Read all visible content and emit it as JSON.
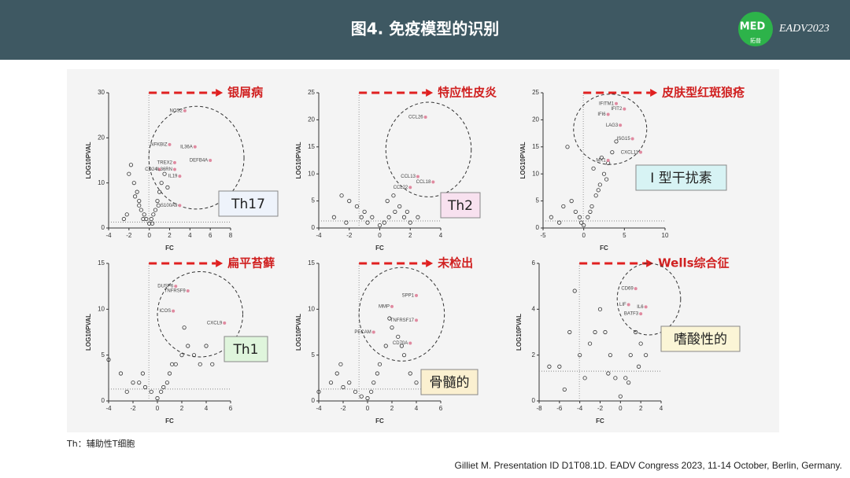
{
  "header": {
    "title": "图4. 免疫模型的识别",
    "logo_text": "MED",
    "logo_subtext": "拓普",
    "event": "EADV2023"
  },
  "footnote": "Th：辅助性T细胞",
  "citation": "Gilliet M. Presentation ID D1T08.1D. EADV Congress 2023, 11-14 October, Berlin, Germany.",
  "chart_data": [
    {
      "type": "scatter",
      "title": "银屑病",
      "xlabel": "FC",
      "ylabel": "LOG10PVAL",
      "xlim": [
        -4,
        8
      ],
      "ylim": [
        0,
        30
      ],
      "xticks": [
        -4,
        -2,
        0,
        2,
        4,
        6,
        8
      ],
      "yticks": [
        0,
        10,
        20,
        30
      ],
      "hline": 1.3,
      "color": "#333333",
      "box_label": "Th17",
      "box_color": "#eef3fb",
      "x": [
        -2.5,
        -2,
        -1.5,
        -1.2,
        -1,
        -0.8,
        -0.5,
        -0.3,
        0,
        0.2,
        0.4,
        0.6,
        0.8,
        1,
        1.2,
        1.5,
        -1.8,
        -1,
        -0.6,
        0.3,
        -2.2,
        -1.4,
        0.9,
        1.8
      ],
      "values": [
        2,
        12,
        10,
        8,
        6,
        4,
        3,
        2,
        1,
        2,
        3,
        4,
        6,
        8,
        10,
        12,
        14,
        5,
        2,
        1,
        3,
        7,
        5,
        9
      ],
      "annotations": [
        {
          "label": "NOS2",
          "x": 3.5,
          "y": 26
        },
        {
          "label": "NFKBIZ",
          "x": 2,
          "y": 18.5
        },
        {
          "label": "IL36A",
          "x": 4.5,
          "y": 18
        },
        {
          "label": "DEFB4A",
          "x": 6,
          "y": 15
        },
        {
          "label": "TREX2",
          "x": 2.5,
          "y": 14.5
        },
        {
          "label": "CD24",
          "x": 1,
          "y": 13
        },
        {
          "label": "IL36RN",
          "x": 2.5,
          "y": 13
        },
        {
          "label": "IL19",
          "x": 3,
          "y": 11.5
        },
        {
          "label": "S100A9",
          "x": 3,
          "y": 5
        }
      ]
    },
    {
      "type": "scatter",
      "title": "特应性皮炎",
      "xlabel": "FC",
      "ylabel": "LOG10PVAL",
      "xlim": [
        -4,
        4
      ],
      "ylim": [
        0,
        25
      ],
      "xticks": [
        -4,
        -2,
        0,
        2,
        4
      ],
      "yticks": [
        0,
        5,
        10,
        15,
        20,
        25
      ],
      "hline": 1.3,
      "color": "#333333",
      "box_label": "Th2",
      "box_color": "#f8e1ef",
      "x": [
        -3,
        -2.5,
        -2,
        -1.5,
        -1,
        -0.5,
        0,
        0.3,
        0.6,
        1,
        1.3,
        1.6,
        2,
        -1.2,
        -0.8,
        0.5,
        1.8,
        -2.2,
        2.5,
        0.9
      ],
      "values": [
        2,
        6,
        5,
        4,
        3,
        2,
        0.5,
        1,
        2,
        3,
        4,
        2,
        1,
        2,
        1,
        5,
        3,
        1,
        2,
        6
      ],
      "annotations": [
        {
          "label": "CCL26",
          "x": 3,
          "y": 20.5
        },
        {
          "label": "CCL13",
          "x": 2.5,
          "y": 9.5
        },
        {
          "label": "CCL18",
          "x": 3.5,
          "y": 8.5
        },
        {
          "label": "CCL22",
          "x": 2,
          "y": 7.5
        }
      ]
    },
    {
      "type": "scatter",
      "title": "皮肤型红斑狼疮",
      "xlabel": "FC",
      "ylabel": "LOG10PVAL",
      "xlim": [
        -5,
        10
      ],
      "ylim": [
        0,
        25
      ],
      "xticks": [
        -5,
        0,
        5,
        10
      ],
      "yticks": [
        0,
        5,
        10,
        15,
        20,
        25
      ],
      "hline": 1.3,
      "color": "#333333",
      "box_label": "Ⅰ 型干扰素",
      "box_color": "#d7f3f4",
      "x": [
        -4,
        -3,
        -2,
        -1,
        -0.5,
        0,
        0.5,
        1,
        1.5,
        2,
        2.5,
        3,
        3.5,
        4,
        -1.5,
        0.8,
        1.8,
        2.8,
        -2.5,
        1.2,
        2.2,
        -0.3
      ],
      "values": [
        2,
        1,
        15,
        3,
        2,
        0.5,
        2,
        4,
        6,
        8,
        10,
        12,
        14,
        16,
        5,
        3,
        7,
        9,
        4,
        11,
        13,
        1
      ],
      "annotations": [
        {
          "label": "IFITM1",
          "x": 4,
          "y": 23
        },
        {
          "label": "IFIT2",
          "x": 5,
          "y": 22
        },
        {
          "label": "IFI6",
          "x": 3,
          "y": 21
        },
        {
          "label": "LAG3",
          "x": 4.5,
          "y": 19
        },
        {
          "label": "ISG15",
          "x": 6,
          "y": 16.5
        },
        {
          "label": "CXCL11",
          "x": 7,
          "y": 14
        },
        {
          "label": "MX1",
          "x": 3,
          "y": 12.5
        }
      ]
    },
    {
      "type": "scatter",
      "title": "扁平苔藓",
      "xlabel": "FC",
      "ylabel": "LOG10PVAL",
      "xlim": [
        -4,
        6
      ],
      "ylim": [
        0,
        15
      ],
      "xticks": [
        -4,
        -2,
        0,
        2,
        4,
        6
      ],
      "yticks": [
        0,
        5,
        10,
        15
      ],
      "hline": 1.3,
      "color": "#333333",
      "box_label": "Th1",
      "box_color": "#dff5dc",
      "x": [
        -4,
        -3,
        -2,
        -1.5,
        -1,
        -0.5,
        0,
        0.5,
        1,
        1.5,
        2,
        2.5,
        3,
        3.5,
        4,
        -2.5,
        0.3,
        1.2,
        2.2,
        -1.2,
        4.5,
        0.8
      ],
      "values": [
        4.5,
        3,
        2,
        2,
        1.5,
        1,
        0.3,
        1.5,
        3,
        4,
        5,
        6,
        5,
        4,
        6,
        1,
        1,
        4,
        8,
        3,
        4,
        2
      ],
      "annotations": [
        {
          "label": "DUSP6",
          "x": 1.5,
          "y": 12.5
        },
        {
          "label": "TNFRSF9",
          "x": 2.5,
          "y": 12
        },
        {
          "label": "ICOS",
          "x": 1.3,
          "y": 9.8
        },
        {
          "label": "CXCL9",
          "x": 5.5,
          "y": 8.5
        }
      ]
    },
    {
      "type": "scatter",
      "title": "未检出",
      "xlabel": "FC",
      "ylabel": "LOG10PVAL",
      "xlim": [
        -4,
        6
      ],
      "ylim": [
        0,
        15
      ],
      "xticks": [
        -4,
        -2,
        0,
        2,
        4,
        6
      ],
      "yticks": [
        0,
        5,
        10,
        15
      ],
      "hline": 1.3,
      "color": "#333333",
      "box_label": "骨髓的",
      "box_color": "#fbf0d0",
      "x": [
        -4,
        -3,
        -2.5,
        -2,
        -1,
        -0.5,
        0,
        0.5,
        1,
        1.5,
        2,
        2.5,
        3,
        3.5,
        4,
        -1.5,
        0.8,
        1.8,
        2.8,
        5,
        -2.2,
        0.3
      ],
      "values": [
        1,
        2,
        3,
        1.5,
        1,
        0.5,
        0.3,
        2,
        4,
        6,
        8,
        7,
        5,
        3,
        2,
        2,
        3,
        9,
        6,
        1,
        4,
        1
      ],
      "annotations": [
        {
          "label": "SPP1",
          "x": 4,
          "y": 11.5
        },
        {
          "label": "MMP",
          "x": 2,
          "y": 10.3
        },
        {
          "label": "TNFRSF17",
          "x": 4,
          "y": 8.8
        },
        {
          "label": "CD70A",
          "x": 3.5,
          "y": 6.3
        },
        {
          "label": "PECAM",
          "x": 0.5,
          "y": 7.5
        }
      ]
    },
    {
      "type": "scatter",
      "title": "Wells综合征",
      "xlabel": "FC",
      "ylabel": "LOG10PVAL",
      "xlim": [
        -8,
        4
      ],
      "ylim": [
        0,
        6
      ],
      "xticks": [
        -8,
        -6,
        -4,
        -2,
        0,
        2,
        4
      ],
      "yticks": [
        0,
        2,
        4,
        6
      ],
      "hline": 1.3,
      "color": "#333333",
      "box_label": "嗜酸性的",
      "box_color": "#fbf5d6",
      "x": [
        -7,
        -6,
        -5,
        -4,
        -3,
        -2,
        -1.5,
        -1,
        -0.5,
        0,
        0.5,
        1,
        1.5,
        2,
        -3.5,
        -2.5,
        -4.5,
        0.8,
        -1.2,
        1.8,
        -5.5,
        2.5
      ],
      "values": [
        1.5,
        1.5,
        3,
        2,
        2.5,
        4,
        3,
        2,
        1,
        0.2,
        1,
        2,
        3,
        2.5,
        1,
        3,
        4.8,
        0.8,
        1.2,
        1.5,
        0.5,
        2
      ],
      "annotations": [
        {
          "label": "CD69",
          "x": 1.5,
          "y": 4.9
        },
        {
          "label": "LIF",
          "x": 0.8,
          "y": 4.2
        },
        {
          "label": "IL6",
          "x": 2.5,
          "y": 4.1
        },
        {
          "label": "BATF3",
          "x": 2,
          "y": 3.8
        }
      ]
    }
  ]
}
